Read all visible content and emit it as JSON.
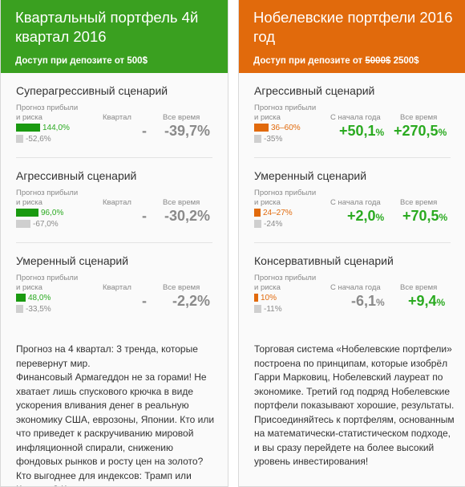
{
  "left": {
    "title": "Квартальный портфель 4й квартал 2016",
    "access_prefix": "Доступ при депозите от 500$",
    "risk_label": "Прогноз прибыли и риска",
    "col1_label": "Квартал",
    "col2_label": "Все время",
    "accent": "#3aa020",
    "scenarios": [
      {
        "name": "Суперагрессивный сценарий",
        "profit": "144,0%",
        "risk": "-52,6%",
        "col1": "-",
        "col2": "-39,7%",
        "profit_frac": 1.0,
        "risk_frac": 0.3
      },
      {
        "name": "Агрессивный сценарий",
        "profit": "96,0%",
        "risk": "-67,0%",
        "col1": "-",
        "col2": "-30,2%",
        "profit_frac": 0.67,
        "risk_frac": 0.35
      },
      {
        "name": "Умеренный сценарий",
        "profit": "48,0%",
        "risk": "-33,5%",
        "col1": "-",
        "col2": "-2,2%",
        "profit_frac": 0.33,
        "risk_frac": 0.3
      }
    ],
    "description": "Прогноз на 4 квартал: 3 тренда, которые перевернут мир.\nФинансовый Армагеддон не за горами! Не хватает лишь спускового крючка в виде ускорения вливания денег в реальную экономику США, еврозоны, Японии. Кто или что приведет к раскручиванию мировой инфляционной спирали, снижению фондовых рынков и росту цен на золото? Кто выгоднее для индексов: Трамп или Клинтон? Какие акции лучше"
  },
  "right": {
    "title": "Нобелевские портфели 2016 год",
    "access_prefix": "Доступ при депозите от",
    "access_old": "5000$",
    "access_new": "2500$",
    "risk_label": "Прогноз прибыли и риска",
    "col1_label": "С начала года",
    "col2_label": "Все время",
    "accent": "#e16a0c",
    "scenarios": [
      {
        "name": "Агрессивный сценарий",
        "profit": "36–60%",
        "risk": "-35%",
        "col1_num": "+50,1",
        "col1_pct": "%",
        "col2_num": "+270,5",
        "col2_pct": "%",
        "profit_frac": 0.55,
        "risk_frac": 0.3
      },
      {
        "name": "Умеренный сценарий",
        "profit": "24–27%",
        "risk": "-24%",
        "col1_num": "+2,0",
        "col1_pct": "%",
        "col2_num": "+70,5",
        "col2_pct": "%",
        "profit_frac": 0.25,
        "risk_frac": 0.3
      },
      {
        "name": "Консервативный сценарий",
        "profit": "10%",
        "risk": "-11%",
        "col1_num": "-6,1",
        "col1_pct": "%",
        "col2_num": "+9,4",
        "col2_pct": "%",
        "profit_frac": 0.12,
        "risk_frac": 0.3
      }
    ],
    "description": "Торговая система «Нобелевские портфели» построена по принципам, которые изобрёл Гарри Марковиц, Нобелевский лауреат по экономике. Третий год подряд Нобелевские портфели показывают хорошие, результаты. Присоединяйтесь к портфелям, основанным на математически-статистическом подходе, и вы сразу перейдете на более высокий уровень инвестирования!"
  }
}
